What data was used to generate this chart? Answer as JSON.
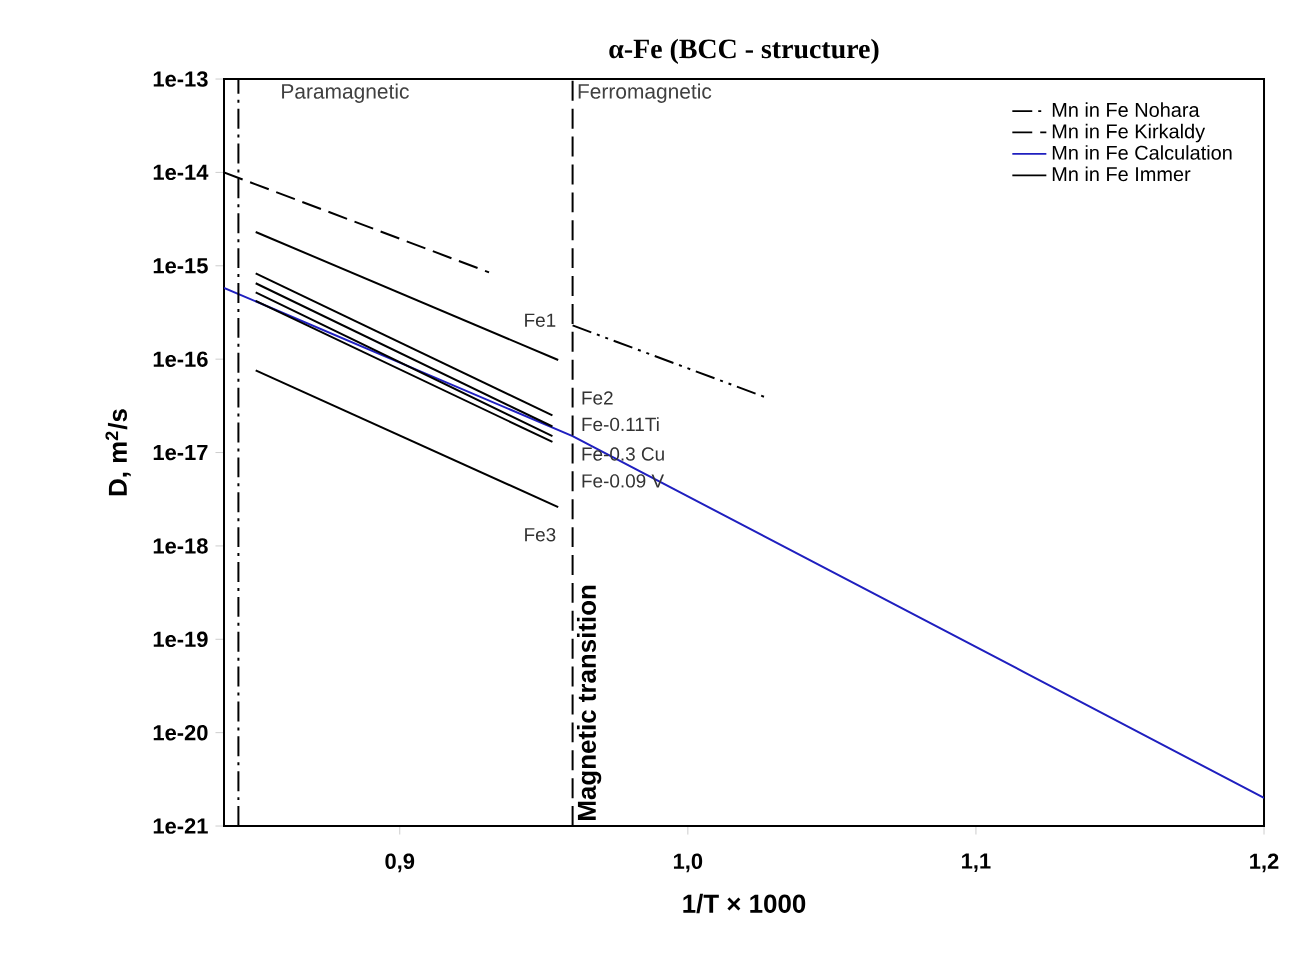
{
  "chart_data": {
    "type": "line",
    "title": "α-Fe (BCC - structure)",
    "xlabel": "1/T × 1000",
    "ylabel": "D, m$^{2}$/s",
    "log": "y",
    "legend": "top right",
    "marker": "none",
    "xlim": [
      0.839,
      1.2
    ],
    "ylim": [
      1e-21,
      1e-13
    ],
    "xticks": [
      {
        "value": 0.9,
        "label": "0,9"
      },
      {
        "value": 1.0,
        "label": "1,0"
      },
      {
        "value": 1.1,
        "label": "1,1"
      },
      {
        "value": 1.2,
        "label": "1,2"
      }
    ],
    "yticks": [
      {
        "value": 1e-21,
        "label": "1e-21"
      },
      {
        "value": 1e-20,
        "label": "1e-20"
      },
      {
        "value": 1e-19,
        "label": "1e-19"
      },
      {
        "value": 1e-18,
        "label": "1e-18"
      },
      {
        "value": 1e-17,
        "label": "1e-17"
      },
      {
        "value": 1e-16,
        "label": "1e-16"
      },
      {
        "value": 1e-15,
        "label": "1e-15"
      },
      {
        "value": 1e-14,
        "label": "1e-14"
      },
      {
        "value": 1e-13,
        "label": "1e-13"
      }
    ],
    "series": [
      {
        "name": "Mn in Fe Nohara",
        "color": "#000000",
        "line_style": "dashdotdotted",
        "x": [
          0.96,
          1.028
        ],
        "values": [
          2.3e-16,
          3.8e-17
        ]
      },
      {
        "name": "Mn in Fe Kirkaldy",
        "color": "#000000",
        "line_style": "dashed",
        "x": [
          0.839,
          0.931
        ],
        "values": [
          1e-14,
          8.5e-16
        ]
      },
      {
        "name": "Mn in Fe Calculation",
        "color": "#1f1fbf",
        "line_style": "solid",
        "x": [
          0.839,
          0.96,
          1.117,
          1.2
        ],
        "values": [
          5.8e-16,
          1.5e-17,
          4.4e-20,
          2e-21
        ]
      },
      {
        "name": "Mn in Fe Immer",
        "color": "#000000",
        "line_style": "solid",
        "x": [
          0.85,
          0.955
        ],
        "values": [
          2.3e-15,
          9.8e-17
        ]
      },
      {
        "color": "#000000",
        "line_style": "solid",
        "x": [
          0.85,
          0.953
        ],
        "values": [
          8.3e-16,
          2.5e-17
        ]
      },
      {
        "color": "#000000",
        "line_style": "solid",
        "x": [
          0.85,
          0.953
        ],
        "values": [
          6.5e-16,
          1.9e-17
        ]
      },
      {
        "color": "#000000",
        "line_style": "solid",
        "x": [
          0.85,
          0.953
        ],
        "values": [
          5.2e-16,
          1.5e-17
        ]
      },
      {
        "color": "#000000",
        "line_style": "solid",
        "x": [
          0.85,
          0.953
        ],
        "values": [
          4.2e-16,
          1.3e-17
        ]
      },
      {
        "color": "#000000",
        "line_style": "solid",
        "x": [
          0.85,
          0.955
        ],
        "values": [
          7.6e-17,
          2.6e-18
        ]
      }
    ],
    "ref_lines": [
      {
        "axis": "x",
        "value": 0.844,
        "line_style": "dashdot"
      },
      {
        "axis": "x",
        "value": 0.96,
        "label": "Magnetic transition",
        "line_style": "dashed"
      }
    ],
    "annotations": [
      "Paramagnetic",
      "Ferromagnetic",
      "Fe1",
      "Fe2",
      "Fe-0.11Ti",
      "Fe-0.3 Cu",
      "Fe-0.09 V",
      "Fe3"
    ]
  }
}
